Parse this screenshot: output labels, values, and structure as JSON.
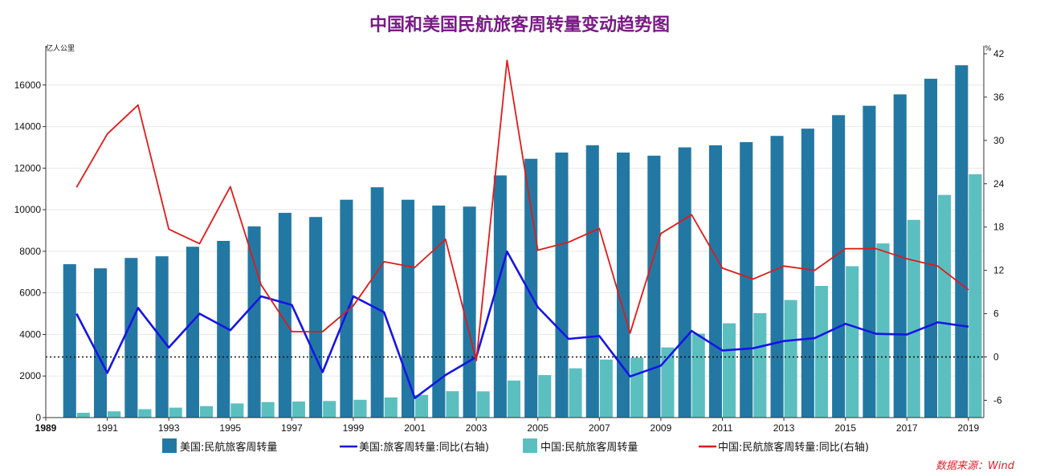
{
  "chart_data": {
    "type": "bar",
    "title": "中国和美国民航旅客周转量变动趋势图",
    "left_unit": "亿人公里",
    "right_unit": "%",
    "x_tick_labels": [
      "1989",
      "1991",
      "1993",
      "1995",
      "1997",
      "1999",
      "2001",
      "2003",
      "2005",
      "2007",
      "2009",
      "2011",
      "2013",
      "2015",
      "2017",
      "2019"
    ],
    "left_ticks": [
      "0",
      "2000",
      "4000",
      "6000",
      "8000",
      "10000",
      "12000",
      "14000",
      "16000"
    ],
    "right_ticks": [
      "-6",
      "0",
      "6",
      "12",
      "18",
      "24",
      "30",
      "36",
      "42"
    ],
    "ylim_left": [
      0,
      17500
    ],
    "ylim_right": [
      -8.4,
      42
    ],
    "zero_line_right": 0,
    "categories": [
      1990,
      1991,
      1992,
      1993,
      1994,
      1995,
      1996,
      1997,
      1998,
      1999,
      2000,
      2001,
      2002,
      2003,
      2004,
      2005,
      2006,
      2007,
      2008,
      2009,
      2010,
      2011,
      2012,
      2013,
      2014,
      2015,
      2016,
      2017,
      2018,
      2019
    ],
    "series": [
      {
        "name": "美国:民航旅客周转量",
        "type": "bar",
        "axis": "left",
        "color": "#2378a3",
        "values": [
          7380,
          7180,
          7680,
          7760,
          8220,
          8500,
          9200,
          9850,
          9650,
          10480,
          11080,
          10480,
          10200,
          10150,
          11650,
          12450,
          12750,
          13100,
          12750,
          12600,
          13000,
          13100,
          13250,
          13550,
          13900,
          14550,
          15000,
          15550,
          16300,
          16950
        ]
      },
      {
        "name": "中国:民航旅客周转量",
        "type": "bar",
        "axis": "left",
        "color": "#5bbfc0",
        "values": [
          230,
          301,
          406,
          478,
          553,
          681,
          747,
          773,
          800,
          857,
          970,
          1091,
          1269,
          1263,
          1782,
          2045,
          2371,
          2792,
          2883,
          3375,
          4039,
          4537,
          5026,
          5657,
          6334,
          7283,
          8378,
          9513,
          10712,
          11705
        ]
      },
      {
        "name": "美国:旅客周转量:同比(右轴)",
        "type": "line",
        "axis": "right",
        "color": "#1515e6",
        "values": [
          6.0,
          -2.2,
          6.8,
          1.3,
          6.0,
          3.7,
          8.4,
          7.2,
          -2.1,
          8.4,
          6.2,
          -5.7,
          -2.5,
          0,
          14.6,
          6.9,
          2.5,
          2.9,
          -2.7,
          -1.2,
          3.6,
          0.9,
          1.2,
          2.2,
          2.6,
          4.6,
          3.2,
          3.1,
          4.8,
          4.2
        ]
      },
      {
        "name": "中国:民航旅客周转量:同比(右轴)",
        "type": "line",
        "axis": "right",
        "color": "#e01a1a",
        "values": [
          23.5,
          30.9,
          34.9,
          17.7,
          15.7,
          23.6,
          10.0,
          3.5,
          3.5,
          7.1,
          13.2,
          12.4,
          16.3,
          -0.5,
          41.1,
          14.8,
          15.9,
          17.8,
          3.3,
          17.1,
          19.7,
          12.3,
          10.8,
          12.6,
          12.0,
          15.0,
          15.0,
          13.6,
          12.6,
          9.3
        ]
      }
    ],
    "legend_position": "bottom",
    "grid": true,
    "source_note": "数据来源：Wind"
  }
}
